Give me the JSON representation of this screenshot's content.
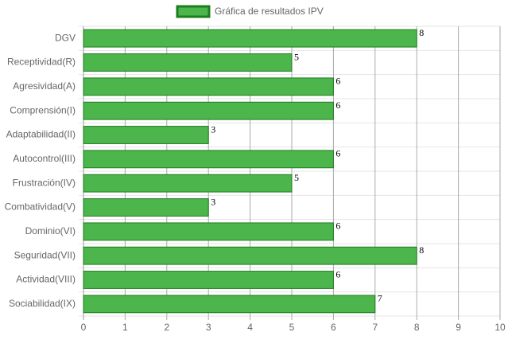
{
  "chart_data": {
    "type": "bar",
    "orientation": "horizontal",
    "categories": [
      "DGV",
      "Receptividad(R)",
      "Agresividad(A)",
      "Comprensión(I)",
      "Adaptabilidad(II)",
      "Autocontrol(III)",
      "Frustración(IV)",
      "Combatividad(V)",
      "Dominio(VI)",
      "Seguridad(VII)",
      "Actividad(VIII)",
      "Sociabilidad(IX)"
    ],
    "series": [
      {
        "name": "Gráfica de resultados IPV",
        "color": "#4cb54c",
        "border_color": "#1e7d1e",
        "values": [
          8,
          5,
          6,
          6,
          3,
          6,
          5,
          3,
          6,
          8,
          6,
          7
        ]
      }
    ],
    "xlim": [
      0,
      10
    ],
    "xticks": [
      0,
      1,
      2,
      3,
      4,
      5,
      6,
      7,
      8,
      9,
      10
    ],
    "grid": true,
    "legend": "top"
  }
}
